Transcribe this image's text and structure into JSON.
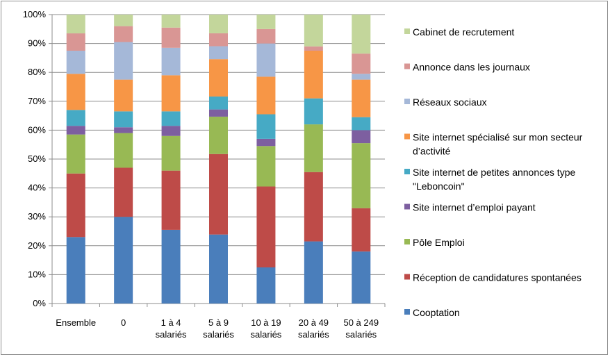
{
  "chart_data": {
    "type": "bar",
    "stacked": true,
    "percent_stacked": true,
    "categories": [
      [
        "Ensemble"
      ],
      [
        "0"
      ],
      [
        "1 à 4",
        "salariés"
      ],
      [
        "5 à 9",
        "salariés"
      ],
      [
        "10 à 19",
        "salariés"
      ],
      [
        "20 à 49",
        "salariés"
      ],
      [
        "50 à 249",
        "salariés"
      ]
    ],
    "ylim": [
      0,
      100
    ],
    "y_ticks": [
      "0%",
      "10%",
      "20%",
      "30%",
      "40%",
      "50%",
      "60%",
      "70%",
      "80%",
      "90%",
      "100%"
    ],
    "grid": true,
    "legend_position": "right",
    "series": [
      {
        "name": "Cooptation",
        "color": "#4a7ebb",
        "values": [
          23,
          30,
          25.5,
          24,
          12.5,
          21.5,
          18
        ]
      },
      {
        "name": "Réception de candidatures spontanées",
        "color": "#be4b48",
        "values": [
          22,
          17,
          20.5,
          28,
          28,
          24,
          15
        ]
      },
      {
        "name": "Pôle Emploi",
        "color": "#98b954",
        "values": [
          13.5,
          12,
          12,
          13,
          14,
          16.5,
          22.5
        ]
      },
      {
        "name": "Site internet d’emploi payant",
        "color": "#7d5fa0",
        "values": [
          3,
          2,
          3.5,
          2.5,
          2.5,
          0,
          4.5
        ]
      },
      {
        "name": "Site internet de petites annonces type \"Leboncoin\"",
        "color": "#46aac5",
        "values": [
          5.5,
          5.5,
          5,
          4.5,
          8.5,
          9,
          4.5
        ]
      },
      {
        "name": "Site internet spécialisé sur mon secteur d’activité",
        "color": "#f79646",
        "values": [
          12.5,
          11,
          12.5,
          13,
          13,
          16.5,
          13
        ]
      },
      {
        "name": "Réseaux sociaux",
        "color": "#a5b8d8",
        "values": [
          8,
          13,
          9.5,
          4.5,
          11.5,
          0,
          2
        ]
      },
      {
        "name": "Annonce dans les journaux",
        "color": "#d99694",
        "values": [
          6,
          5.5,
          7,
          4.5,
          5,
          1.5,
          7
        ]
      },
      {
        "name": "Cabinet de recrutement",
        "color": "#c3d69b",
        "values": [
          6.5,
          4,
          4.5,
          6.5,
          5,
          11,
          13.5
        ]
      }
    ],
    "legend": [
      [
        "Cabinet de recrutement"
      ],
      [
        "Annonce dans les journaux"
      ],
      [
        "Réseaux sociaux"
      ],
      [
        "Site internet spécialisé sur mon secteur",
        "d’activité"
      ],
      [
        "Site internet de petites annonces type",
        "\"Leboncoin\""
      ],
      [
        "Site internet d’emploi payant"
      ],
      [
        "Pôle Emploi"
      ],
      [
        "Réception de candidatures spontanées"
      ],
      [
        "Cooptation"
      ]
    ]
  }
}
